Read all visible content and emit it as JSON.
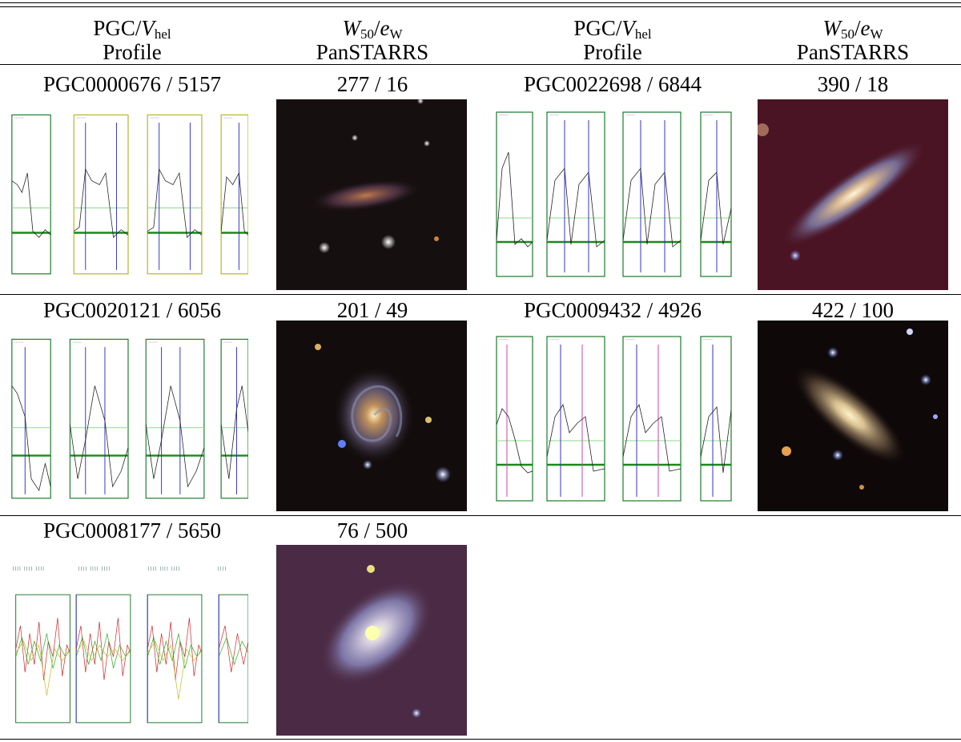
{
  "header": {
    "col1": {
      "var_a": "PGC",
      "sep": "/",
      "var_b": "V",
      "sub_b": "hel",
      "line2": "Profile"
    },
    "col2": {
      "var_a": "W",
      "sub_a": "50",
      "sep": "/",
      "var_b": "e",
      "sub_b": "W",
      "line2": "PanSTARRS"
    },
    "col3": {
      "var_a": "PGC",
      "sep": "/",
      "var_b": "V",
      "sub_b": "hel",
      "line2": "Profile"
    },
    "col4": {
      "var_a": "W",
      "sub_a": "50",
      "sep": "/",
      "var_b": "e",
      "sub_b": "W",
      "line2": "PanSTARRS"
    }
  },
  "rows": [
    {
      "left": {
        "pgc": "PGC0000676 / 5157",
        "w50": "277 / 16"
      },
      "right": {
        "pgc": "PGC0022698 / 6844",
        "w50": "390 / 18"
      }
    },
    {
      "left": {
        "pgc": "PGC0020121 / 6056",
        "w50": "201 / 49"
      },
      "right": {
        "pgc": "PGC0009432 / 4926",
        "w50": "422 / 100"
      }
    },
    {
      "left": {
        "pgc": "PGC0008177 / 5650",
        "w50": "76 / 500"
      }
    }
  ],
  "colors": {
    "frame": "#1a7a2a",
    "baseline": "#1a8a1a",
    "marker": "#3333cc",
    "sky_red": "#4a1020",
    "sky_dark": "#0e0808"
  }
}
